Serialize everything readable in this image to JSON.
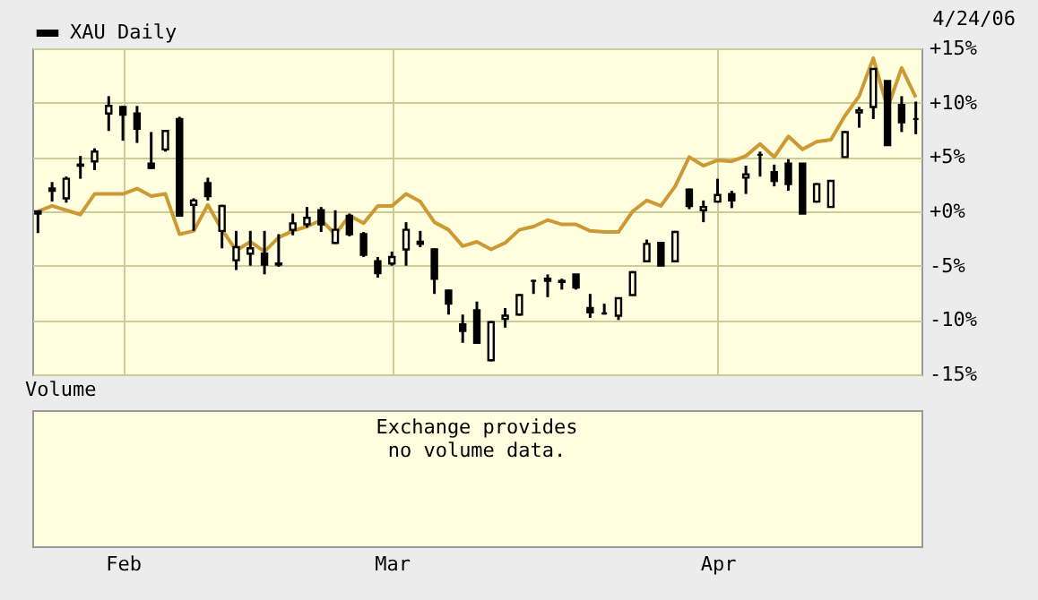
{
  "chart_data": [
    {
      "type": "candlestick",
      "categories": [
        null,
        null,
        null,
        null,
        null,
        null,
        "Feb",
        null,
        null,
        null,
        null,
        null,
        null,
        null,
        null,
        null,
        null,
        null,
        null,
        null,
        null,
        null,
        null,
        null,
        null,
        "Mar",
        null,
        null,
        null,
        null,
        null,
        null,
        null,
        null,
        null,
        null,
        null,
        null,
        null,
        null,
        null,
        null,
        null,
        null,
        null,
        null,
        null,
        null,
        "Apr",
        null,
        null,
        null,
        null,
        null,
        null,
        null,
        null,
        null,
        null,
        null,
        null,
        null,
        null
      ],
      "series": [
        {
          "name": "XAU Daily",
          "type": "candlestick",
          "color": "#000000",
          "ohlc": [
            [
              -0.2,
              0,
              -2.0,
              0
            ],
            [
              2.1,
              2.7,
              0.9,
              1.9
            ],
            [
              1.2,
              3.2,
              0.8,
              3.0
            ],
            [
              4.2,
              5.1,
              3.0,
              4.3
            ],
            [
              4.6,
              5.8,
              3.8,
              5.5
            ],
            [
              9.0,
              10.6,
              7.4,
              9.7
            ],
            [
              9.6,
              9.7,
              6.5,
              8.9
            ],
            [
              9.0,
              9.7,
              6.3,
              7.6
            ],
            [
              4.4,
              7.3,
              3.9,
              4.0
            ],
            [
              5.7,
              7.4,
              5.5,
              7.4
            ],
            [
              8.5,
              8.7,
              -0.5,
              -0.4
            ],
            [
              0.6,
              1.2,
              -1.8,
              1.0
            ],
            [
              2.6,
              3.1,
              1.0,
              1.4
            ],
            [
              -1.8,
              0.6,
              -3.4,
              0.5
            ],
            [
              -4.5,
              -1.8,
              -5.4,
              -3.3
            ],
            [
              -3.9,
              -1.8,
              -5.0,
              -3.4
            ],
            [
              -3.9,
              -1.8,
              -5.8,
              -4.9
            ],
            [
              -4.9,
              -2.1,
              -5.1,
              -4.8
            ],
            [
              -1.7,
              -0.2,
              -2.2,
              -1.1
            ],
            [
              -1.2,
              0.4,
              -1.5,
              -0.6
            ],
            [
              0.1,
              0.4,
              -1.9,
              -1.2
            ],
            [
              -2.9,
              0.1,
              -3.0,
              -1.7
            ],
            [
              -0.4,
              -0.2,
              -2.3,
              -2.1
            ],
            [
              -2.1,
              -1.9,
              -4.2,
              -4.0
            ],
            [
              -4.6,
              -4.2,
              -6.1,
              -5.7
            ],
            [
              -4.8,
              -3.7,
              -5.0,
              -4.2
            ],
            [
              -3.5,
              -1.0,
              -5.0,
              -1.7
            ],
            [
              -2.8,
              -1.8,
              -3.3,
              -3.0
            ],
            [
              -3.5,
              -3.4,
              -7.6,
              -6.2
            ],
            [
              -7.3,
              -7.2,
              -9.5,
              -8.5
            ],
            [
              -10.4,
              -9.5,
              -12.1,
              -11.0
            ],
            [
              -9.1,
              -8.3,
              -12.1,
              -12.1
            ],
            [
              -13.7,
              -10.1,
              -13.8,
              -10.2
            ],
            [
              -9.9,
              -8.9,
              -10.7,
              -9.6
            ],
            [
              -9.5,
              -7.6,
              -9.6,
              -7.7
            ],
            [
              -6.4,
              -6.3,
              -7.6,
              -6.4
            ],
            [
              -6.4,
              -5.8,
              -7.9,
              -6.2
            ],
            [
              -6.4,
              -6.2,
              -7.2,
              -6.5
            ],
            [
              -5.8,
              -5.8,
              -7.2,
              -7.0
            ],
            [
              -8.9,
              -7.6,
              -9.8,
              -9.3
            ],
            [
              -9.4,
              -8.5,
              -9.5,
              -9.4
            ],
            [
              -9.6,
              -8.0,
              -10.0,
              -8.0
            ],
            [
              -7.7,
              -5.5,
              -7.7,
              -5.6
            ],
            [
              -4.6,
              -2.6,
              -4.6,
              -3.0
            ],
            [
              -2.9,
              -2.9,
              -5.0,
              -5.0
            ],
            [
              -4.6,
              -1.8,
              -4.6,
              -1.9
            ],
            [
              2.0,
              2.1,
              0.2,
              0.5
            ],
            [
              0.1,
              1.0,
              -1.0,
              0.4
            ],
            [
              0.9,
              3.0,
              0.8,
              1.5
            ],
            [
              1.6,
              1.9,
              0.3,
              1.0
            ],
            [
              3.1,
              4.2,
              1.6,
              3.4
            ],
            [
              5.2,
              5.5,
              3.2,
              5.2
            ],
            [
              3.6,
              4.3,
              2.3,
              2.8
            ],
            [
              4.4,
              4.8,
              1.9,
              2.5
            ],
            [
              4.4,
              4.4,
              -0.2,
              -0.2
            ],
            [
              0.9,
              2.6,
              0.8,
              2.5
            ],
            [
              0.4,
              2.8,
              0.4,
              2.8
            ],
            [
              5.0,
              7.4,
              5.0,
              7.3
            ],
            [
              9.1,
              9.6,
              7.7,
              9.3
            ],
            [
              9.6,
              13.1,
              8.5,
              13.1
            ],
            [
              12.0,
              12.0,
              6.1,
              6.1
            ],
            [
              9.8,
              10.6,
              7.3,
              8.2
            ],
            [
              8.5,
              10.1,
              7.1,
              8.5
            ]
          ]
        },
        {
          "type": "line",
          "color": "#cc9933",
          "values": [
            0.0,
            0.5,
            0.1,
            -0.3,
            1.6,
            1.6,
            1.6,
            2.1,
            1.4,
            1.6,
            -2.1,
            -1.8,
            0.6,
            -1.7,
            -3.6,
            -2.8,
            -3.7,
            -2.4,
            -1.8,
            -1.4,
            -0.8,
            -2.1,
            -0.4,
            -1.1,
            0.5,
            0.5,
            1.6,
            0.9,
            -1.0,
            -1.7,
            -3.2,
            -2.8,
            -3.5,
            -2.9,
            -1.7,
            -1.4,
            -0.8,
            -1.2,
            -1.2,
            -1.8,
            -1.9,
            -1.9,
            0.0,
            1.0,
            0.5,
            2.3,
            5.0,
            4.2,
            4.7,
            4.6,
            5.1,
            6.2,
            5.0,
            6.9,
            5.7,
            6.4,
            6.6,
            8.8,
            10.6,
            14.1,
            9.5,
            13.2,
            10.5
          ]
        }
      ],
      "ylim": [
        -15,
        15
      ],
      "yticks": [
        {
          "value": 15,
          "label": "+15%"
        },
        {
          "value": 10,
          "label": "+10%"
        },
        {
          "value": 5,
          "label": "+5%"
        },
        {
          "value": 0,
          "label": "+0%"
        },
        {
          "value": -5,
          "label": "-5%"
        },
        {
          "value": -10,
          "label": "-10%"
        },
        {
          "value": -15,
          "label": "-15%"
        }
      ],
      "grid": true,
      "legend": "top left",
      "tick_labels": "y",
      "annotations": [
        "4/24/06"
      ]
    },
    {
      "type": "other",
      "title": "Volume",
      "annotations": [
        "Exchange provides\nno volume data."
      ]
    }
  ]
}
